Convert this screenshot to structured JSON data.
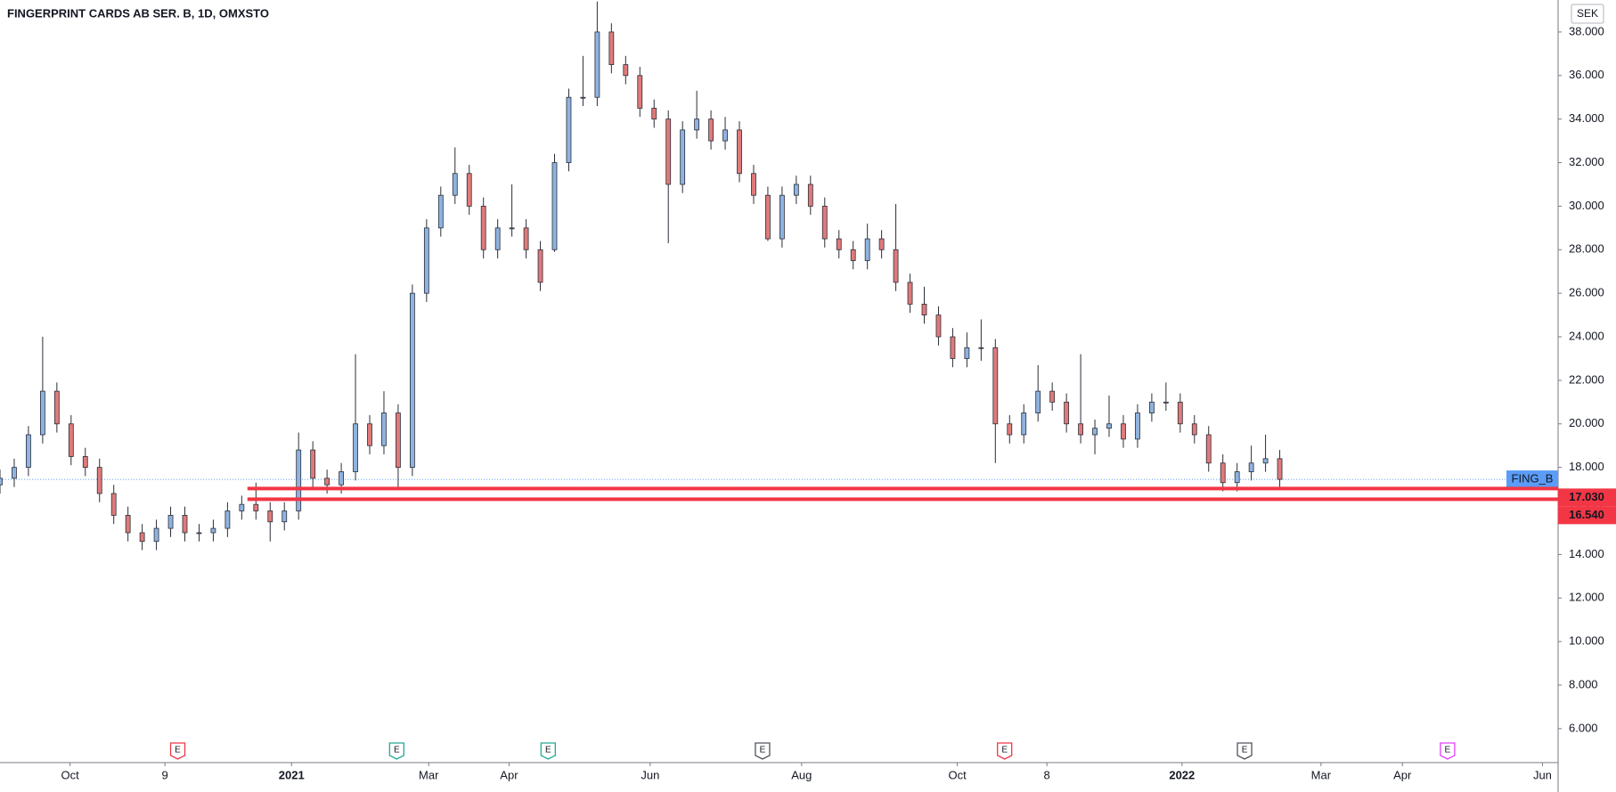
{
  "chart_data": {
    "type": "candlestick",
    "title": "FINGERPRINT CARDS AB SER. B, 1D, OMXSTO",
    "y_axis_label": "SEK",
    "xlim": [
      0,
      438.3
    ],
    "ylim": [
      4.44,
      39.47
    ],
    "grid": false,
    "yticks": [
      {
        "value": 6,
        "label": "6.000"
      },
      {
        "value": 8,
        "label": "8.000"
      },
      {
        "value": 10,
        "label": "10.000"
      },
      {
        "value": 12,
        "label": "12.000"
      },
      {
        "value": 14,
        "label": "14.000"
      },
      {
        "value": 16,
        "label": "16.000"
      },
      {
        "value": 18,
        "label": "18.000"
      },
      {
        "value": 20,
        "label": "20.000"
      },
      {
        "value": 22,
        "label": "22.000"
      },
      {
        "value": 24,
        "label": "24.000"
      },
      {
        "value": 26,
        "label": "26.000"
      },
      {
        "value": 28,
        "label": "28.000"
      },
      {
        "value": 30,
        "label": "30.000"
      },
      {
        "value": 32,
        "label": "32.000"
      },
      {
        "value": 34,
        "label": "34.000"
      },
      {
        "value": 36,
        "label": "36.000"
      },
      {
        "value": 38,
        "label": "38.000"
      }
    ],
    "xticks": [
      {
        "value": 19.7,
        "label": "Oct"
      },
      {
        "value": 46.4,
        "label": "9"
      },
      {
        "value": 82,
        "label": "2021"
      },
      {
        "value": 120.6,
        "label": "Mar"
      },
      {
        "value": 143.2,
        "label": "Apr"
      },
      {
        "value": 182.9,
        "label": "Jun"
      },
      {
        "value": 225.5,
        "label": "Aug"
      },
      {
        "value": 269.3,
        "label": "Oct"
      },
      {
        "value": 294.5,
        "label": "8"
      },
      {
        "value": 332.5,
        "label": "2022"
      },
      {
        "value": 371.6,
        "label": "Mar"
      },
      {
        "value": 394.5,
        "label": "Apr"
      },
      {
        "value": 433.9,
        "label": "Jun"
      }
    ],
    "series": [
      {
        "name": "FING_B",
        "up_color": "#8fb3e0",
        "down_color": "#e07a7a",
        "wick_color": "#2a2e39",
        "label_color": "#5b9cf6",
        "x": [
          0,
          4,
          8,
          12,
          16,
          20,
          24,
          28,
          32,
          36,
          40,
          44,
          48,
          52,
          56,
          60,
          64,
          68,
          72,
          76,
          80,
          84,
          88,
          92,
          96,
          100,
          104,
          108,
          112,
          116,
          120,
          124,
          128,
          132,
          136,
          140,
          144,
          148,
          152,
          156,
          160,
          164,
          168,
          172,
          176,
          180,
          184,
          188,
          192,
          196,
          200,
          204,
          208,
          212,
          216,
          220,
          224,
          228,
          232,
          236,
          240,
          244,
          248,
          252,
          256,
          260,
          264,
          268,
          272,
          276,
          280,
          284,
          288,
          292,
          296,
          300,
          304,
          308,
          312,
          316,
          320,
          324,
          328,
          332,
          336,
          340,
          344,
          348,
          352,
          356,
          360
        ],
        "open": [
          17.2,
          17.5,
          18,
          19.5,
          21.5,
          20,
          18.5,
          18,
          16.8,
          15.8,
          15,
          14.6,
          15.2,
          15.8,
          15,
          15,
          15.2,
          16,
          16.3,
          16,
          15.5,
          16,
          18.8,
          17.5,
          17.2,
          17.8,
          20,
          19,
          20.5,
          18,
          26,
          29,
          30.5,
          31.5,
          30,
          28,
          29,
          29,
          28,
          28,
          32,
          35,
          35,
          38,
          36.5,
          36,
          34.5,
          34,
          31,
          33.5,
          34,
          33,
          33.5,
          31.5,
          30.5,
          28.5,
          30.5,
          31,
          30,
          28.5,
          28,
          27.5,
          28.5,
          28,
          26.5,
          25.5,
          25,
          24,
          23,
          23.5,
          23.5,
          20,
          19.5,
          20.5,
          21.5,
          21,
          20,
          19.5,
          19.8,
          20,
          19.3,
          20.5,
          21,
          21,
          20,
          19.5,
          18.2,
          17.3,
          17.8,
          18.2,
          18.4
        ],
        "high": [
          17.9,
          18.4,
          19.9,
          24,
          21.9,
          20.4,
          18.9,
          18.4,
          17.2,
          16.2,
          15.4,
          15.6,
          16.2,
          16.2,
          15.4,
          15.6,
          16.4,
          16.7,
          17.3,
          16.4,
          16.4,
          19.6,
          19.2,
          17.9,
          18.2,
          23.2,
          20.4,
          21.5,
          20.9,
          26.4,
          29.4,
          30.9,
          32.7,
          31.9,
          30.4,
          29.4,
          31,
          29.4,
          28.4,
          32.4,
          35.4,
          36.9,
          39.4,
          38.4,
          36.9,
          36.4,
          34.9,
          34.4,
          33.9,
          35.3,
          34.4,
          34.1,
          33.9,
          31.9,
          30.9,
          30.9,
          31.4,
          31.4,
          30.4,
          28.9,
          28.4,
          29.2,
          28.9,
          30.1,
          26.9,
          26.3,
          25.4,
          24.4,
          24.2,
          24.8,
          23.9,
          20.4,
          20.9,
          22.7,
          21.9,
          21.4,
          23.2,
          20.2,
          21.3,
          20.4,
          20.9,
          21.4,
          21.9,
          21.4,
          20.4,
          19.9,
          18.6,
          18.2,
          19,
          19.5,
          18.8
        ],
        "low": [
          16.8,
          17.1,
          17.6,
          19.1,
          19.6,
          18.1,
          17.6,
          16.4,
          15.4,
          14.6,
          14.2,
          14.2,
          14.8,
          14.6,
          14.6,
          14.6,
          14.8,
          15.6,
          15.6,
          14.6,
          15.1,
          15.6,
          17.1,
          16.8,
          16.8,
          17.4,
          18.6,
          18.6,
          17,
          17.6,
          25.6,
          28.6,
          30.1,
          29.6,
          27.6,
          27.6,
          28.6,
          27.6,
          26.1,
          27.9,
          31.6,
          34.6,
          34.6,
          36.1,
          35.6,
          34.1,
          33.6,
          28.3,
          30.6,
          33.1,
          32.6,
          32.6,
          31.1,
          30.1,
          28.4,
          28.1,
          30.1,
          29.6,
          28.1,
          27.6,
          27.1,
          27.1,
          27.6,
          26.1,
          25.1,
          24.6,
          23.6,
          22.6,
          22.6,
          22.9,
          18.2,
          19.1,
          19.1,
          20.1,
          20.6,
          19.6,
          19.1,
          18.6,
          19.4,
          18.9,
          18.9,
          20.1,
          20.6,
          19.6,
          19.1,
          17.8,
          16.9,
          16.9,
          17.4,
          17.8,
          17
        ],
        "close": [
          17.5,
          18,
          19.5,
          21.5,
          20,
          18.5,
          18,
          16.8,
          15.8,
          15,
          14.6,
          15.2,
          15.8,
          15,
          15,
          15.2,
          16,
          16.3,
          16,
          15.5,
          16,
          18.8,
          17.5,
          17.2,
          17.8,
          20,
          19,
          20.5,
          18,
          26,
          29,
          30.5,
          31.5,
          30,
          28,
          29,
          29,
          28,
          26.5,
          32,
          35,
          35,
          38,
          36.5,
          36,
          34.5,
          34,
          31,
          33.5,
          34,
          33,
          33.5,
          31.5,
          30.5,
          28.5,
          30.5,
          31,
          30,
          28.5,
          28,
          27.5,
          28.5,
          28,
          26.5,
          25.5,
          25,
          24,
          23,
          23.5,
          23.5,
          20,
          19.5,
          20.5,
          21.5,
          21,
          20,
          19.5,
          19.8,
          20,
          19.3,
          20.5,
          21,
          21,
          20,
          19.5,
          18.2,
          17.3,
          17.8,
          18.2,
          18.4,
          17.45
        ]
      }
    ],
    "levels": [
      {
        "value": 17.03,
        "label": "17.030",
        "color": "#f23645",
        "start_x": 69.6
      },
      {
        "value": 16.54,
        "label": "16.540",
        "color": "#f23645",
        "start_x": 69.6
      }
    ],
    "events": [
      {
        "x": 50,
        "label": "E",
        "color": "#f23645"
      },
      {
        "x": 111.6,
        "label": "E",
        "color": "#22ab94"
      },
      {
        "x": 154.2,
        "label": "E",
        "color": "#22ab94"
      },
      {
        "x": 214.5,
        "label": "E",
        "color": "#50535e"
      },
      {
        "x": 282.6,
        "label": "E",
        "color": "#f23645"
      },
      {
        "x": 350.1,
        "label": "E",
        "color": "#50535e"
      },
      {
        "x": 407.2,
        "label": "E",
        "color": "#e040fb"
      }
    ]
  }
}
